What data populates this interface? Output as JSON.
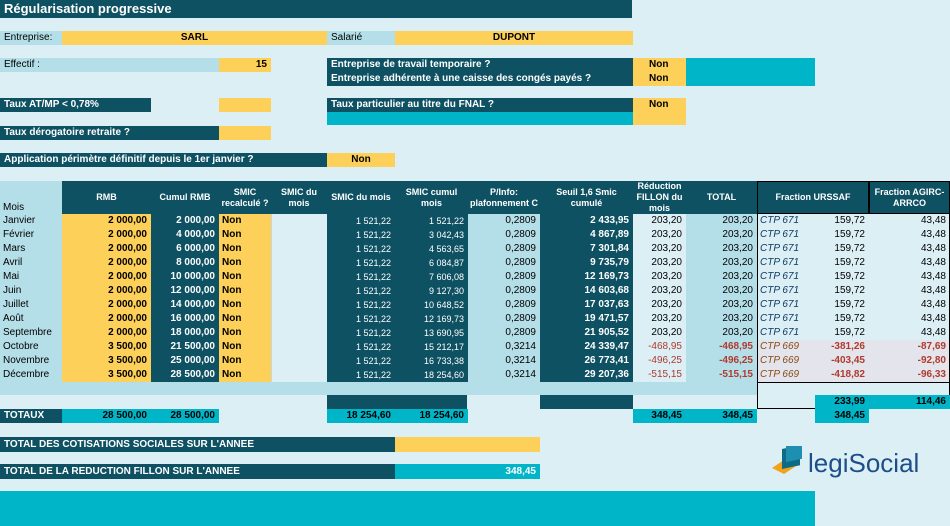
{
  "title": "Régularisation progressive",
  "header": {
    "entreprise_label": "Entreprise:",
    "entreprise_value": "SARL",
    "salarie_label": "Salarié",
    "salarie_value": "DUPONT",
    "effectif_label": "Effectif :",
    "effectif_value": "15",
    "travail_temp_label": "Entreprise de travail temporaire ?",
    "travail_temp_value": "Non",
    "conges_label": "Entreprise adhérente à une caisse des congés payés ?",
    "conges_value": "Non",
    "taux_atmp_label": "Taux AT/MP < 0,78%",
    "fnal_label": "Taux particulier au titre du FNAL ?",
    "fnal_value": "Non",
    "taux_derog_label": "Taux dérogatoire retraite ?",
    "perimetre_label": "Application périmètre définitif depuis le 1er janvier ?",
    "perimetre_value": "Non"
  },
  "table": {
    "mois_header": "Mois",
    "columns": [
      "RMB",
      "Cumul RMB",
      "SMIC recalculé ?",
      "SMIC du mois",
      "SMIC du mois",
      "SMIC cumul mois",
      "P/Info: plafonnement C",
      "Seuil 1,6 Smic cumulé",
      "Réduction FILLON du mois",
      "TOTAL",
      "Fraction URSSAF",
      "Fraction AGIRC-ARRCO"
    ],
    "rows": [
      {
        "mois": "Janvier",
        "rmb": "2 000,00",
        "cumul": "2 000,00",
        "recalc": "Non",
        "smic": "1 521,22",
        "smic_cumul": "1 521,22",
        "plaf": "0,2809",
        "seuil": "2 433,95",
        "reduc": "203,20",
        "total": "203,20",
        "ctp": "CTP 671",
        "urssaf": "159,72",
        "agirc": "43,48"
      },
      {
        "mois": "Février",
        "rmb": "2 000,00",
        "cumul": "4 000,00",
        "recalc": "Non",
        "smic": "1 521,22",
        "smic_cumul": "3 042,43",
        "plaf": "0,2809",
        "seuil": "4 867,89",
        "reduc": "203,20",
        "total": "203,20",
        "ctp": "CTP 671",
        "urssaf": "159,72",
        "agirc": "43,48"
      },
      {
        "mois": "Mars",
        "rmb": "2 000,00",
        "cumul": "6 000,00",
        "recalc": "Non",
        "smic": "1 521,22",
        "smic_cumul": "4 563,65",
        "plaf": "0,2809",
        "seuil": "7 301,84",
        "reduc": "203,20",
        "total": "203,20",
        "ctp": "CTP 671",
        "urssaf": "159,72",
        "agirc": "43,48"
      },
      {
        "mois": "Avril",
        "rmb": "2 000,00",
        "cumul": "8 000,00",
        "recalc": "Non",
        "smic": "1 521,22",
        "smic_cumul": "6 084,87",
        "plaf": "0,2809",
        "seuil": "9 735,79",
        "reduc": "203,20",
        "total": "203,20",
        "ctp": "CTP 671",
        "urssaf": "159,72",
        "agirc": "43,48"
      },
      {
        "mois": "Mai",
        "rmb": "2 000,00",
        "cumul": "10 000,00",
        "recalc": "Non",
        "smic": "1 521,22",
        "smic_cumul": "7 606,08",
        "plaf": "0,2809",
        "seuil": "12 169,73",
        "reduc": "203,20",
        "total": "203,20",
        "ctp": "CTP 671",
        "urssaf": "159,72",
        "agirc": "43,48"
      },
      {
        "mois": "Juin",
        "rmb": "2 000,00",
        "cumul": "12 000,00",
        "recalc": "Non",
        "smic": "1 521,22",
        "smic_cumul": "9 127,30",
        "plaf": "0,2809",
        "seuil": "14 603,68",
        "reduc": "203,20",
        "total": "203,20",
        "ctp": "CTP 671",
        "urssaf": "159,72",
        "agirc": "43,48"
      },
      {
        "mois": "Juillet",
        "rmb": "2 000,00",
        "cumul": "14 000,00",
        "recalc": "Non",
        "smic": "1 521,22",
        "smic_cumul": "10 648,52",
        "plaf": "0,2809",
        "seuil": "17 037,63",
        "reduc": "203,20",
        "total": "203,20",
        "ctp": "CTP 671",
        "urssaf": "159,72",
        "agirc": "43,48"
      },
      {
        "mois": "Août",
        "rmb": "2 000,00",
        "cumul": "16 000,00",
        "recalc": "Non",
        "smic": "1 521,22",
        "smic_cumul": "12 169,73",
        "plaf": "0,2809",
        "seuil": "19 471,57",
        "reduc": "203,20",
        "total": "203,20",
        "ctp": "CTP 671",
        "urssaf": "159,72",
        "agirc": "43,48"
      },
      {
        "mois": "Septembre",
        "rmb": "2 000,00",
        "cumul": "18 000,00",
        "recalc": "Non",
        "smic": "1 521,22",
        "smic_cumul": "13 690,95",
        "plaf": "0,2809",
        "seuil": "21 905,52",
        "reduc": "203,20",
        "total": "203,20",
        "ctp": "CTP 671",
        "urssaf": "159,72",
        "agirc": "43,48"
      },
      {
        "mois": "Octobre",
        "rmb": "3 500,00",
        "cumul": "21 500,00",
        "recalc": "Non",
        "smic": "1 521,22",
        "smic_cumul": "15 212,17",
        "plaf": "0,3214",
        "seuil": "24 339,47",
        "reduc": "-468,95",
        "total": "-468,95",
        "ctp": "CTP 669",
        "urssaf": "-381,26",
        "agirc": "-87,69"
      },
      {
        "mois": "Novembre",
        "rmb": "3 500,00",
        "cumul": "25 000,00",
        "recalc": "Non",
        "smic": "1 521,22",
        "smic_cumul": "16 733,38",
        "plaf": "0,3214",
        "seuil": "26 773,41",
        "reduc": "-496,25",
        "total": "-496,25",
        "ctp": "CTP 669",
        "urssaf": "-403,45",
        "agirc": "-92,80"
      },
      {
        "mois": "Décembre",
        "rmb": "3 500,00",
        "cumul": "28 500,00",
        "recalc": "Non",
        "smic": "1 521,22",
        "smic_cumul": "18 254,60",
        "plaf": "0,3214",
        "seuil": "29 207,36",
        "reduc": "-515,15",
        "total": "-515,15",
        "ctp": "CTP 669",
        "urssaf": "-418,82",
        "agirc": "-96,33"
      }
    ],
    "frac_urssaf_total": "233,99",
    "frac_agirc_total": "114,46"
  },
  "totaux": {
    "label": "TOTAUX",
    "rmb": "28 500,00",
    "cumul": "28 500,00",
    "smic": "18 254,60",
    "smic_cumul": "18 254,60",
    "reduc": "348,45",
    "total": "348,45",
    "fraction": "348,45"
  },
  "footer": {
    "cotisations_label": "TOTAL DES COTISATIONS SOCIALES SUR L'ANNEE",
    "fillon_label": "TOTAL DE LA REDUCTION FILLON SUR L'ANNEE",
    "fillon_value": "348,45"
  },
  "logo": {
    "part1": "legi",
    "part2": "Social"
  }
}
